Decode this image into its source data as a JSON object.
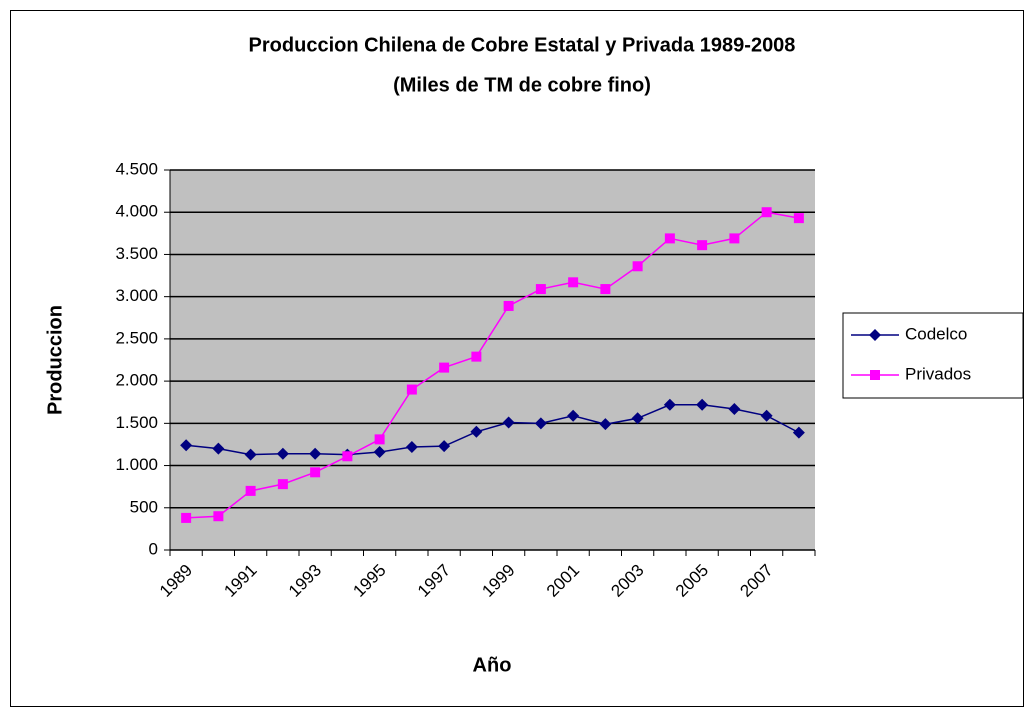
{
  "chart_data": {
    "type": "line",
    "title": "Produccion Chilena de Cobre Estatal y Privada 1989-2008",
    "subtitle": "(Miles de TM de cobre fino)",
    "x_label": "Año",
    "y_label": "Produccion",
    "categories": [
      "1989",
      null,
      "1991",
      null,
      "1993",
      null,
      "1995",
      null,
      "1997",
      null,
      "1999",
      null,
      "2001",
      null,
      "2003",
      null,
      "2005",
      null,
      "2007",
      null
    ],
    "series": [
      {
        "name": "Codelco",
        "color": "#000080",
        "marker": "diamond",
        "values": [
          1240,
          1200,
          1130,
          1140,
          1140,
          1130,
          1160,
          1220,
          1230,
          1400,
          1510,
          1500,
          1590,
          1490,
          1560,
          1720,
          1720,
          1670,
          1590,
          1390
        ]
      },
      {
        "name": "Privados",
        "color": "#ff00ff",
        "marker": "square",
        "values": [
          380,
          400,
          700,
          780,
          920,
          1110,
          1310,
          1900,
          2160,
          2290,
          2890,
          3090,
          3170,
          3090,
          3360,
          3690,
          3610,
          3690,
          4000,
          3930
        ]
      }
    ],
    "ylim": [
      0,
      4500
    ],
    "yticks": [
      0,
      500,
      {
        "value": 1000,
        "label": "1.000"
      },
      {
        "value": 1500,
        "label": "1.500"
      },
      {
        "value": 2000,
        "label": "2.000"
      },
      {
        "value": 2500,
        "label": "2.500"
      },
      {
        "value": 3000,
        "label": "3.000"
      },
      {
        "value": 3500,
        "label": "3.500"
      },
      {
        "value": 4000,
        "label": "4.000"
      },
      {
        "value": 4500,
        "label": "4.500"
      }
    ],
    "grid": true,
    "legend": "right",
    "plot_background": "#c0c0c0"
  }
}
